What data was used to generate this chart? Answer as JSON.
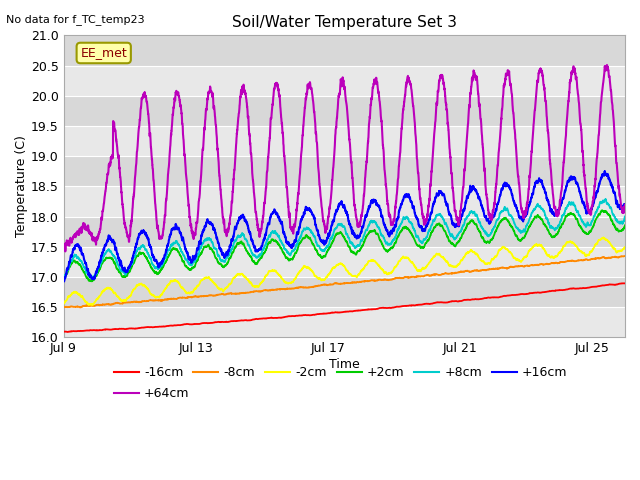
{
  "title": "Soil/Water Temperature Set 3",
  "subtitle": "No data for f_TC_temp23",
  "xlabel": "Time",
  "ylabel": "Temperature (C)",
  "ylim": [
    16.0,
    21.0
  ],
  "yticks": [
    16.0,
    16.5,
    17.0,
    17.5,
    18.0,
    18.5,
    19.0,
    19.5,
    20.0,
    20.5,
    21.0
  ],
  "xtick_labels": [
    "Jul 9",
    "Jul 13",
    "Jul 17",
    "Jul 21",
    "Jul 25"
  ],
  "xtick_positions": [
    0,
    4,
    8,
    12,
    16
  ],
  "legend_label": "EE_met",
  "series_labels": [
    "-16cm",
    "-8cm",
    "-2cm",
    "+2cm",
    "+8cm",
    "+16cm",
    "+64cm"
  ],
  "series_colors": [
    "#ff0000",
    "#ff8800",
    "#ffff00",
    "#00cc00",
    "#00cccc",
    "#0000ff",
    "#bb00bb"
  ],
  "n_points": 4080
}
